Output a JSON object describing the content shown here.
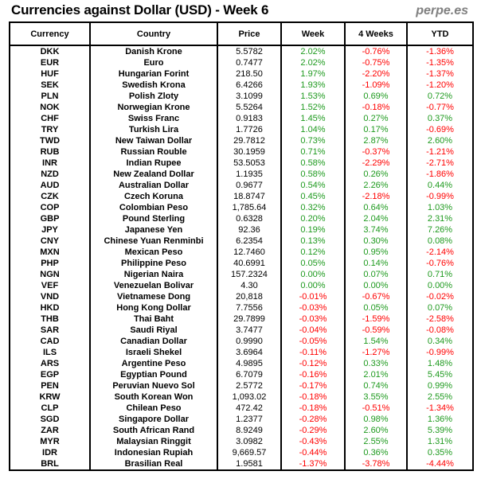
{
  "title": "Currencies against Dollar (USD) - Week 6",
  "brand": "perpe.es",
  "colors": {
    "positive": "#1e9a1e",
    "negative": "#ff0000"
  },
  "columns": [
    "Currency",
    "Country",
    "Price",
    "Week",
    "4 Weeks",
    "YTD"
  ],
  "rows": [
    {
      "code": "DKK",
      "country": "Danish Krone",
      "price": "5.5782",
      "week": "2.02%",
      "four_weeks": "-0.76%",
      "ytd": "-1.36%"
    },
    {
      "code": "EUR",
      "country": "Euro",
      "price": "0.7477",
      "week": "2.02%",
      "four_weeks": "-0.75%",
      "ytd": "-1.35%"
    },
    {
      "code": "HUF",
      "country": "Hungarian Forint",
      "price": "218.50",
      "week": "1.97%",
      "four_weeks": "-2.20%",
      "ytd": "-1.37%"
    },
    {
      "code": "SEK",
      "country": "Swedish Krona",
      "price": "6.4266",
      "week": "1.93%",
      "four_weeks": "-1.09%",
      "ytd": "-1.20%"
    },
    {
      "code": "PLN",
      "country": "Polish Zloty",
      "price": "3.1099",
      "week": "1.53%",
      "four_weeks": "0.69%",
      "ytd": "0.72%"
    },
    {
      "code": "NOK",
      "country": "Norwegian Krone",
      "price": "5.5264",
      "week": "1.52%",
      "four_weeks": "-0.18%",
      "ytd": "-0.77%"
    },
    {
      "code": "CHF",
      "country": "Swiss Franc",
      "price": "0.9183",
      "week": "1.45%",
      "four_weeks": "0.27%",
      "ytd": "0.37%"
    },
    {
      "code": "TRY",
      "country": "Turkish Lira",
      "price": "1.7726",
      "week": "1.04%",
      "four_weeks": "0.17%",
      "ytd": "-0.69%"
    },
    {
      "code": "TWD",
      "country": "New Taiwan Dollar",
      "price": "29.7812",
      "week": "0.73%",
      "four_weeks": "2.87%",
      "ytd": "2.60%"
    },
    {
      "code": "RUB",
      "country": "Russian Rouble",
      "price": "30.1959",
      "week": "0.71%",
      "four_weeks": "-0.37%",
      "ytd": "-1.21%"
    },
    {
      "code": "INR",
      "country": "Indian Rupee",
      "price": "53.5053",
      "week": "0.58%",
      "four_weeks": "-2.29%",
      "ytd": "-2.71%"
    },
    {
      "code": "NZD",
      "country": "New Zealand Dollar",
      "price": "1.1935",
      "week": "0.58%",
      "four_weeks": "0.26%",
      "ytd": "-1.86%"
    },
    {
      "code": "AUD",
      "country": "Australian Dollar",
      "price": "0.9677",
      "week": "0.54%",
      "four_weeks": "2.26%",
      "ytd": "0.44%"
    },
    {
      "code": "CZK",
      "country": "Czech Koruna",
      "price": "18.8747",
      "week": "0.45%",
      "four_weeks": "-2.18%",
      "ytd": "-0.99%"
    },
    {
      "code": "COP",
      "country": "Colombian Peso",
      "price": "1,785.64",
      "week": "0.32%",
      "four_weeks": "0.64%",
      "ytd": "1.03%"
    },
    {
      "code": "GBP",
      "country": "Pound Sterling",
      "price": "0.6328",
      "week": "0.20%",
      "four_weeks": "2.04%",
      "ytd": "2.31%"
    },
    {
      "code": "JPY",
      "country": "Japanese Yen",
      "price": "92.36",
      "week": "0.19%",
      "four_weeks": "3.74%",
      "ytd": "7.26%"
    },
    {
      "code": "CNY",
      "country": "Chinese Yuan Renminbi",
      "price": "6.2354",
      "week": "0.13%",
      "four_weeks": "0.30%",
      "ytd": "0.08%"
    },
    {
      "code": "MXN",
      "country": "Mexican Peso",
      "price": "12.7460",
      "week": "0.12%",
      "four_weeks": "0.95%",
      "ytd": "-2.14%"
    },
    {
      "code": "PHP",
      "country": "Philippine Peso",
      "price": "40.6991",
      "week": "0.05%",
      "four_weeks": "0.14%",
      "ytd": "-0.76%"
    },
    {
      "code": "NGN",
      "country": "Nigerian Naira",
      "price": "157.2324",
      "week": "0.00%",
      "four_weeks": "0.07%",
      "ytd": "0.71%"
    },
    {
      "code": "VEF",
      "country": "Venezuelan Bolivar",
      "price": "4.30",
      "week": "0.00%",
      "four_weeks": "0.00%",
      "ytd": "0.00%"
    },
    {
      "code": "VND",
      "country": "Vietnamese Dong",
      "price": "20,818",
      "week": "-0.01%",
      "four_weeks": "-0.67%",
      "ytd": "-0.02%"
    },
    {
      "code": "HKD",
      "country": "Hong Kong Dollar",
      "price": "7.7556",
      "week": "-0.03%",
      "four_weeks": "0.05%",
      "ytd": "0.07%"
    },
    {
      "code": "THB",
      "country": "Thai Baht",
      "price": "29.7899",
      "week": "-0.03%",
      "four_weeks": "-1.59%",
      "ytd": "-2.58%"
    },
    {
      "code": "SAR",
      "country": "Saudi Riyal",
      "price": "3.7477",
      "week": "-0.04%",
      "four_weeks": "-0.59%",
      "ytd": "-0.08%"
    },
    {
      "code": "CAD",
      "country": "Canadian Dollar",
      "price": "0.9990",
      "week": "-0.05%",
      "four_weeks": "1.54%",
      "ytd": "0.34%"
    },
    {
      "code": "ILS",
      "country": "Israeli Shekel",
      "price": "3.6964",
      "week": "-0.11%",
      "four_weeks": "-1.27%",
      "ytd": "-0.99%"
    },
    {
      "code": "ARS",
      "country": "Argentine Peso",
      "price": "4.9895",
      "week": "-0.12%",
      "four_weeks": "0.33%",
      "ytd": "1.48%"
    },
    {
      "code": "EGP",
      "country": "Egyptian Pound",
      "price": "6.7079",
      "week": "-0.16%",
      "four_weeks": "2.01%",
      "ytd": "5.45%"
    },
    {
      "code": "PEN",
      "country": "Peruvian Nuevo Sol",
      "price": "2.5772",
      "week": "-0.17%",
      "four_weeks": "0.74%",
      "ytd": "0.99%"
    },
    {
      "code": "KRW",
      "country": "South Korean Won",
      "price": "1,093.02",
      "week": "-0.18%",
      "four_weeks": "3.55%",
      "ytd": "2.55%"
    },
    {
      "code": "CLP",
      "country": "Chilean Peso",
      "price": "472.42",
      "week": "-0.18%",
      "four_weeks": "-0.51%",
      "ytd": "-1.34%"
    },
    {
      "code": "SGD",
      "country": "Singapore Dollar",
      "price": "1.2377",
      "week": "-0.28%",
      "four_weeks": "0.98%",
      "ytd": "1.36%"
    },
    {
      "code": "ZAR",
      "country": "South African Rand",
      "price": "8.9249",
      "week": "-0.29%",
      "four_weeks": "2.60%",
      "ytd": "5.39%"
    },
    {
      "code": "MYR",
      "country": "Malaysian Ringgit",
      "price": "3.0982",
      "week": "-0.43%",
      "four_weeks": "2.55%",
      "ytd": "1.31%"
    },
    {
      "code": "IDR",
      "country": "Indonesian Rupiah",
      "price": "9,669.57",
      "week": "-0.44%",
      "four_weeks": "0.36%",
      "ytd": "0.35%"
    },
    {
      "code": "BRL",
      "country": "Brasilian Real",
      "price": "1.9581",
      "week": "-1.37%",
      "four_weeks": "-3.78%",
      "ytd": "-4.44%"
    }
  ]
}
